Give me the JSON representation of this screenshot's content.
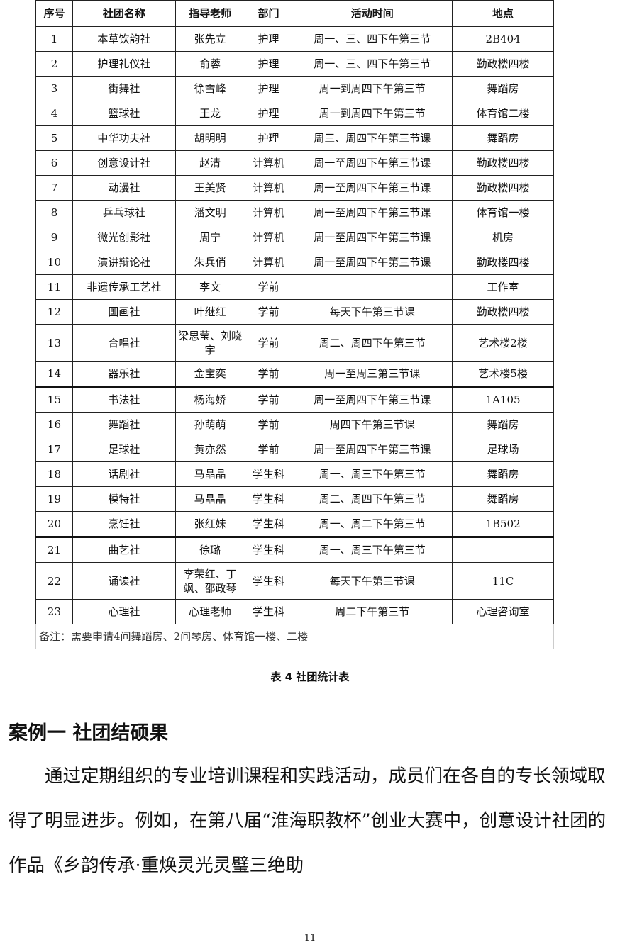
{
  "table": {
    "headers": [
      "序号",
      "社团名称",
      "指导老师",
      "部门",
      "活动时间",
      "地点"
    ],
    "rows": [
      [
        "1",
        "本草饮韵社",
        "张先立",
        "护理",
        "周一、三、四下午第三节",
        "2B404"
      ],
      [
        "2",
        "护理礼仪社",
        "俞蓉",
        "护理",
        "周一、三、四下午第三节",
        "勤政楼四楼"
      ],
      [
        "3",
        "街舞社",
        "徐雪峰",
        "护理",
        "周一到周四下午第三节",
        "舞蹈房"
      ],
      [
        "4",
        "篮球社",
        "王龙",
        "护理",
        "周一到周四下午第三节",
        "体育馆二楼"
      ],
      [
        "5",
        "中华功夫社",
        "胡明明",
        "护理",
        "周三、周四下午第三节课",
        "舞蹈房"
      ],
      [
        "6",
        "创意设计社",
        "赵清",
        "计算机",
        "周一至周四下午第三节课",
        "勤政楼四楼"
      ],
      [
        "7",
        "动漫社",
        "王美贤",
        "计算机",
        "周一至周四下午第三节课",
        "勤政楼四楼"
      ],
      [
        "8",
        "乒乓球社",
        "潘文明",
        "计算机",
        "周一至周四下午第三节课",
        "体育馆一楼"
      ],
      [
        "9",
        "微光创影社",
        "周宁",
        "计算机",
        "周一至周四下午第三节课",
        "机房"
      ],
      [
        "10",
        "演讲辩论社",
        "朱兵俏",
        "计算机",
        "周一至周四下午第三节课",
        "勤政楼四楼"
      ],
      [
        "11",
        "非遗传承工艺社",
        "李文",
        "学前",
        "",
        "工作室"
      ],
      [
        "12",
        "国画社",
        "叶继红",
        "学前",
        "每天下午第三节课",
        "勤政楼四楼"
      ],
      [
        "13",
        "合唱社",
        "梁思莹、刘晓宇",
        "学前",
        "周二、周四下午第三节",
        "艺术楼2楼"
      ],
      [
        "14",
        "器乐社",
        "金宝奕",
        "学前",
        "周一至周三第三节课",
        "艺术楼5楼"
      ],
      [
        "15",
        "书法社",
        "杨海娇",
        "学前",
        "周一至周四下午第三节课",
        "1A105"
      ],
      [
        "16",
        "舞蹈社",
        "孙萌萌",
        "学前",
        "周四下午第三节课",
        "舞蹈房"
      ],
      [
        "17",
        "足球社",
        "黄亦然",
        "学前",
        "周一至周四下午第三节课",
        "足球场"
      ],
      [
        "18",
        "话剧社",
        "马晶晶",
        "学生科",
        "周一、周三下午第三节",
        "舞蹈房"
      ],
      [
        "19",
        "模特社",
        "马晶晶",
        "学生科",
        "周二、周四下午第三节",
        "舞蹈房"
      ],
      [
        "20",
        "烹饪社",
        "张红妹",
        "学生科",
        "周一、周二下午第三节",
        "1B502"
      ],
      [
        "21",
        "曲艺社",
        "徐璐",
        "学生科",
        "周一、周三下午第三节",
        ""
      ],
      [
        "22",
        "诵读社",
        "李荣红、丁飒、邵政琴",
        "学生科",
        "每天下午第三节课",
        "11C"
      ],
      [
        "23",
        "心理社",
        "心理老师",
        "学生科",
        "周二下午第三节",
        "心理咨询室"
      ]
    ],
    "note": "备注：需要申请4间舞蹈房、2间琴房、体育馆一楼、二楼"
  },
  "caption": "表 4 社团统计表",
  "heading": "案例一 社团结硕果",
  "paragraph": "通过定期组织的专业培训课程和实践活动，成员们在各自的专长领域取得了明显进步。例如，在第八届“淮海职教杯”创业大赛中，创意设计社团的作品《乡韵传承·重焕灵光灵璧三绝助",
  "page_number": "- 11 -"
}
